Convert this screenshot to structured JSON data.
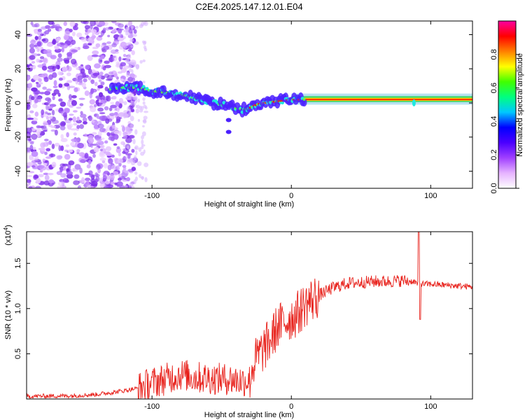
{
  "title": "C2E4.2025.147.12.01.E04",
  "chart_data": [
    {
      "type": "heatmap",
      "xlabel": "Height of straight line (km)",
      "ylabel": "Frequency (Hz)",
      "xlim": [
        -190,
        130
      ],
      "ylim": [
        -50,
        48
      ],
      "xticks": [
        -100,
        0,
        100
      ],
      "yticks": [
        -40,
        -20,
        0,
        20,
        40
      ],
      "colorbar": {
        "label": "Normalized spectral amplitude",
        "range": [
          0,
          1
        ],
        "ticks": [
          "0.0",
          "0.2",
          "0.4",
          "0.6",
          "0.8"
        ],
        "colors": [
          "#ffffff",
          "#e6b3ff",
          "#a040ff",
          "#4b00ff",
          "#0000ff",
          "#00c8ff",
          "#00ff80",
          "#40ff00",
          "#ffff00",
          "#ff8000",
          "#ff0000",
          "#ff00a0"
        ]
      },
      "ridge": {
        "x": [
          -130,
          -120,
          -110,
          -100,
          -90,
          -80,
          -70,
          -60,
          -50,
          -45,
          -40,
          -35,
          -30,
          -25,
          -20,
          -10,
          0,
          10,
          20,
          50,
          80,
          86,
          88,
          90,
          100,
          130
        ],
        "y": [
          8,
          9,
          9,
          7,
          6,
          5,
          3,
          1,
          -1,
          -2,
          -3,
          -4,
          -3,
          -1,
          0,
          1,
          2,
          2,
          2,
          2,
          2,
          2,
          -1,
          2,
          2,
          2
        ]
      }
    },
    {
      "type": "line",
      "xlabel": "Height of straight line (km)",
      "ylabel": "SNR (10 * v/v)",
      "y_multiplier": "(x10^4)",
      "xlim": [
        -190,
        130
      ],
      "ylim": [
        0,
        18500
      ],
      "xticks": [
        -100,
        0,
        100
      ],
      "yticks": [
        5000,
        10000,
        15000
      ],
      "ytick_labels": [
        "0.5",
        "1.0",
        "1.5"
      ],
      "series": [
        {
          "color": "#e8231d",
          "x": [
            -190,
            -160,
            -140,
            -125,
            -110,
            -100,
            -90,
            -85,
            -80,
            -75,
            -70,
            -60,
            -50,
            -45,
            -40,
            -35,
            -30,
            -28,
            -25,
            -20,
            -15,
            -10,
            -5,
            0,
            5,
            10,
            15,
            20,
            30,
            40,
            50,
            60,
            70,
            80,
            85,
            88,
            90,
            91,
            92,
            95,
            100,
            110,
            120,
            130
          ],
          "y": [
            300,
            350,
            500,
            800,
            1200,
            1800,
            2200,
            2500,
            2700,
            2600,
            2400,
            2300,
            2200,
            2200,
            2100,
            2000,
            2100,
            3500,
            4500,
            5500,
            6500,
            8000,
            8500,
            9000,
            9500,
            10500,
            11000,
            11500,
            12300,
            12800,
            12900,
            13000,
            13000,
            13100,
            13000,
            13000,
            12800,
            12500,
            12800,
            12700,
            12700,
            12600,
            12500,
            12400
          ]
        }
      ]
    }
  ]
}
